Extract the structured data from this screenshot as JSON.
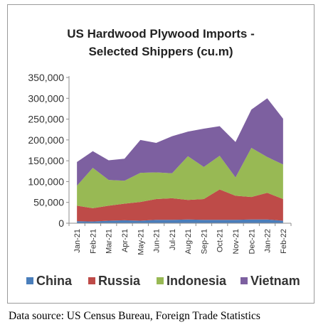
{
  "chart_data": {
    "type": "area",
    "stacked": true,
    "title_lines": [
      "US Hardwood Plywood Imports -",
      "Selected Shippers (cu.m)"
    ],
    "categories": [
      "Jan-21",
      "Feb-21",
      "Mar-21",
      "Apr-21",
      "May-21",
      "Jun-21",
      "Jul-21",
      "Aug-21",
      "Sep-21",
      "Oct-21",
      "Nov-21",
      "Dec-21",
      "Jan-22",
      "Feb-22"
    ],
    "series": [
      {
        "name": "China",
        "color": "#4a7ebb",
        "values": [
          5000,
          4000,
          6000,
          7000,
          6000,
          8000,
          8000,
          9000,
          8000,
          8000,
          8000,
          9000,
          9000,
          6000
        ]
      },
      {
        "name": "Russia",
        "color": "#be4b48",
        "values": [
          37000,
          32000,
          36000,
          40000,
          45000,
          50000,
          52000,
          47000,
          50000,
          73000,
          58000,
          54000,
          64000,
          52000
        ]
      },
      {
        "name": "Indonesia",
        "color": "#98b954",
        "values": [
          48000,
          97000,
          62000,
          55000,
          70000,
          64000,
          60000,
          105000,
          77000,
          81000,
          44000,
          118000,
          86000,
          83000
        ]
      },
      {
        "name": "Vietnam",
        "color": "#7d60a0",
        "values": [
          57000,
          40000,
          47000,
          53000,
          79000,
          71000,
          89000,
          59000,
          92000,
          71000,
          85000,
          92000,
          141000,
          110000
        ]
      }
    ],
    "ylim": [
      0,
      350000
    ],
    "yticks": [
      0,
      50000,
      100000,
      150000,
      200000,
      250000,
      300000,
      350000
    ],
    "ytick_labels": [
      "0",
      "50,000",
      "100,000",
      "150,000",
      "200,000",
      "250,000",
      "300,000",
      "350,000"
    ],
    "legend_position": "bottom",
    "grid": false
  },
  "footer": {
    "source": "Data source: US Census Bureau, Foreign Trade Statistics"
  }
}
